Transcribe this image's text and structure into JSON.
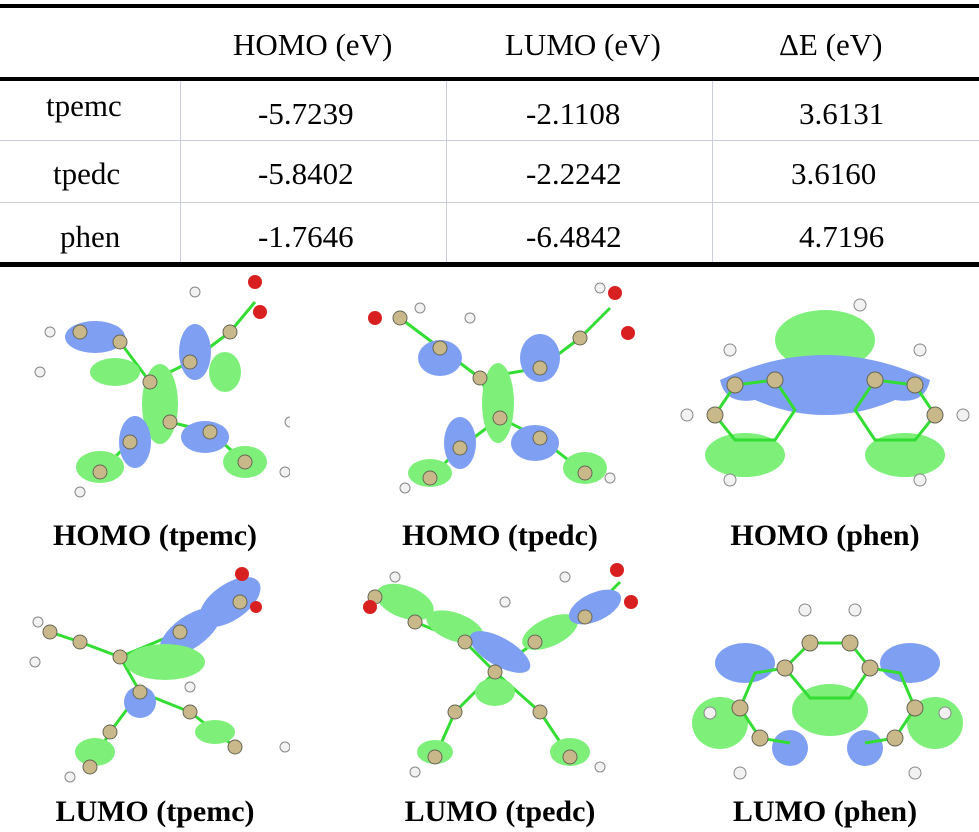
{
  "table": {
    "headers": [
      "",
      "HOMO (eV)",
      "LUMO (eV)",
      "ΔE (eV)"
    ],
    "rows": [
      {
        "name": "tpemc",
        "homo": "-5.7239",
        "lumo": "-2.1108",
        "gap": "3.6131"
      },
      {
        "name": "tpedc",
        "homo": "-5.8402",
        "lumo": "-2.2242",
        "gap": "3.6160"
      },
      {
        "name": "phen",
        "homo": "-1.7646",
        "lumo": "-6.4842",
        "gap": "4.7196"
      }
    ]
  },
  "orbitals": {
    "captions": [
      "HOMO (tpemc)",
      "HOMO (tpedc)",
      "HOMO (phen)",
      "LUMO (tpemc)",
      "LUMO (tpedc)",
      "LUMO (phen)"
    ],
    "colors": {
      "positive_lobe": "#7ef07a",
      "negative_lobe": "#7f9ff2",
      "bond": "#33dd22",
      "carbon": "#c9b98a",
      "hydrogen": "#f2f2f2",
      "oxygen": "#d92020"
    }
  }
}
